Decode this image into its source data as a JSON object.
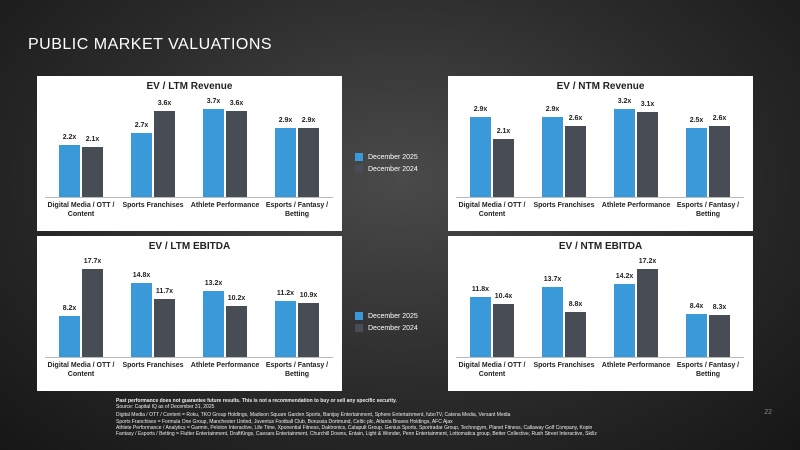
{
  "title": "PUBLIC MARKET VALUATIONS",
  "chart_data": [
    {
      "type": "bar",
      "title": "EV / LTM Revenue",
      "categories": [
        "Digital Media / OTT / Content",
        "Sports Franchises",
        "Athlete Performance",
        "Esports / Fantasy / Betting"
      ],
      "series": [
        {
          "name": "December 2025",
          "color": "#3a9ad9",
          "values": [
            2.2,
            2.7,
            3.7,
            2.9
          ],
          "value_labels": [
            "2.2x",
            "2.7x",
            "3.7x",
            "2.9x"
          ]
        },
        {
          "name": "December 2024",
          "color": "#474c55",
          "values": [
            2.1,
            3.6,
            3.6,
            2.9
          ],
          "value_labels": [
            "2.1x",
            "3.6x",
            "3.6x",
            "2.9x"
          ]
        }
      ]
    },
    {
      "type": "bar",
      "title": "EV / NTM Revenue",
      "categories": [
        "Digital Media / OTT / Content",
        "Sports Franchises",
        "Athlete Performance",
        "Esports / Fantasy / Betting"
      ],
      "series": [
        {
          "name": "December 2025",
          "color": "#3a9ad9",
          "values": [
            2.9,
            2.9,
            3.2,
            2.5
          ],
          "value_labels": [
            "2.9x",
            "2.9x",
            "3.2x",
            "2.5x"
          ]
        },
        {
          "name": "December 2024",
          "color": "#474c55",
          "values": [
            2.1,
            2.6,
            3.1,
            2.6
          ],
          "value_labels": [
            "2.1x",
            "2.6x",
            "3.1x",
            "2.6x"
          ]
        }
      ]
    },
    {
      "type": "bar",
      "title": "EV / LTM EBITDA",
      "categories": [
        "Digital Media / OTT / Content",
        "Sports Franchises",
        "Athlete Performance",
        "Esports / Fantasy / Betting"
      ],
      "series": [
        {
          "name": "December 2025",
          "color": "#3a9ad9",
          "values": [
            8.2,
            14.8,
            13.2,
            11.2
          ],
          "value_labels": [
            "8.2x",
            "14.8x",
            "13.2x",
            "11.2x"
          ]
        },
        {
          "name": "December 2024",
          "color": "#474c55",
          "values": [
            17.7,
            11.7,
            10.2,
            10.9
          ],
          "value_labels": [
            "17.7x",
            "11.7x",
            "10.2x",
            "10.9x"
          ]
        }
      ]
    },
    {
      "type": "bar",
      "title": "EV / NTM EBITDA",
      "categories": [
        "Digital Media / OTT / Content",
        "Sports Franchises",
        "Athlete Performance",
        "Esports / Fantasy / Betting"
      ],
      "series": [
        {
          "name": "December 2025",
          "color": "#3a9ad9",
          "values": [
            11.8,
            13.7,
            14.2,
            8.4
          ],
          "value_labels": [
            "11.8x",
            "13.7x",
            "14.2x",
            "8.4x"
          ]
        },
        {
          "name": "December 2024",
          "color": "#474c55",
          "values": [
            10.4,
            8.8,
            17.2,
            8.3
          ],
          "value_labels": [
            "10.4x",
            "8.8x",
            "17.2x",
            "8.3x"
          ]
        }
      ]
    }
  ],
  "footnotes": [
    "Past performance does not guarantee future results. This is not a recommendation to buy or sell any specific security.",
    "Source: Capital IQ as of December 31, 2025",
    "Digital Media / OTT / Content = Roku, TKO Group Holdings, Madison Square Garden Sports, Banijay Entertainment, Sphere Entertainment, fuboTV, Catena Media, Versant Media",
    "Sports Franchises = Formula One Group, Manchester United, Juventus Football Club, Borussia Dortmund, Celtic plc, Atlanta Braves Holdings, AFC Ajax",
    "Athlete Performance / Analytics = Garmin, Peloton Interactive, Life Time, Xponential Fitness, Daktronics, Catapult Group, Genius Sports, Sportradar Group, Technogym, Planet Fitness, Callaway Golf Company, Kopin",
    "Fantasy / Esports / Betting = Flutter Entertainment, DraftKings, Caesars Entertainment, Churchill Downs, Entain, Light & Wonder, Penn Entertainment, Lottomatica group, Better Collective, Rush Street Interactive, Skillz"
  ],
  "page_number": "22"
}
